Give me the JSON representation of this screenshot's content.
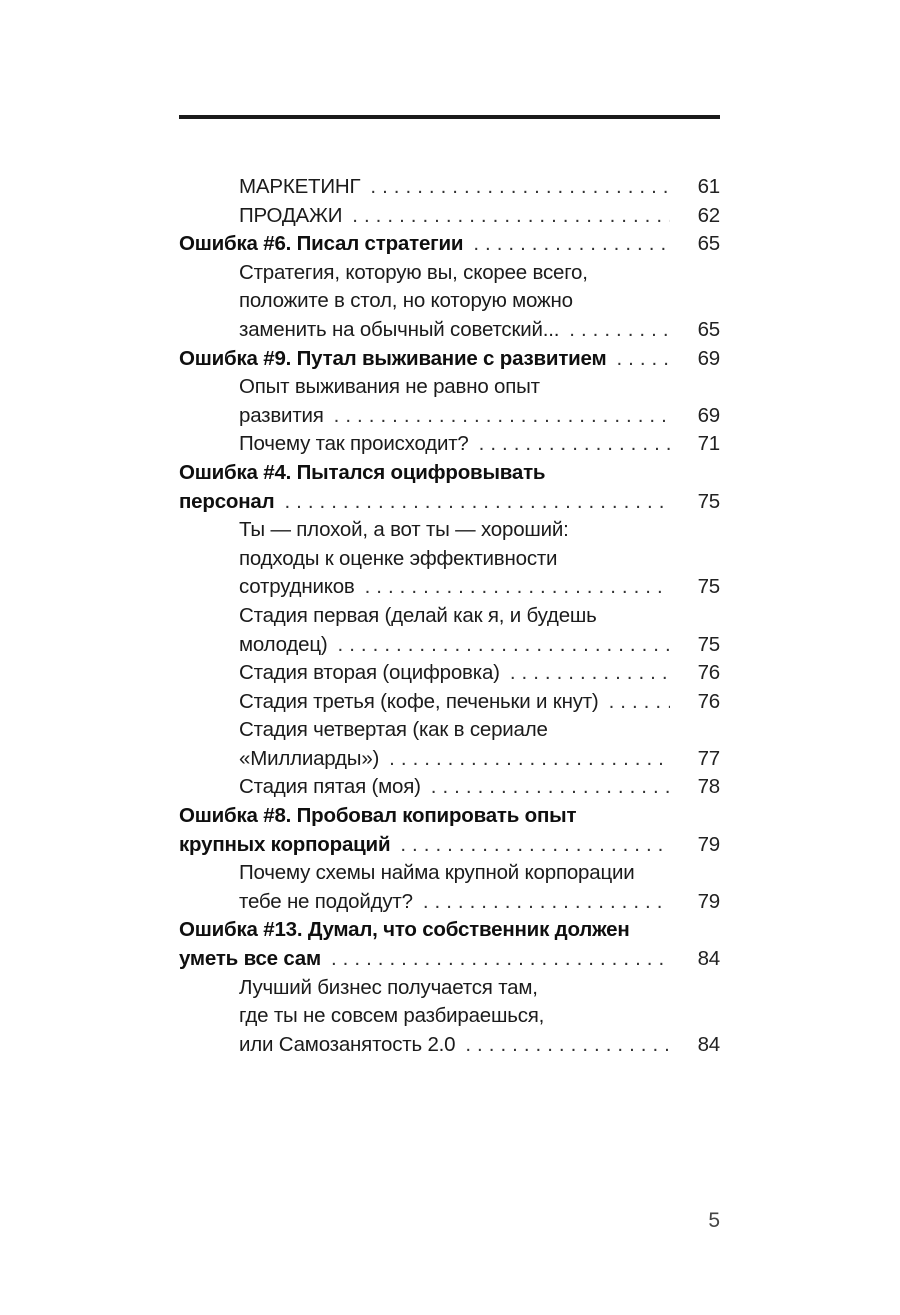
{
  "page": {
    "background": "#ffffff",
    "rule_color": "#1a1a1a",
    "text_color": "#1b1b1b",
    "folio_number": "5",
    "dot_leader_char": "."
  },
  "toc": {
    "entries": [
      {
        "bold": false,
        "indent": true,
        "lines": [
          "МАРКЕТИНГ"
        ],
        "page": "61"
      },
      {
        "bold": false,
        "indent": true,
        "lines": [
          "ПРОДАЖИ"
        ],
        "page": "62"
      },
      {
        "bold": true,
        "indent": false,
        "lines": [
          "Ошибка #6. Писал стратегии"
        ],
        "page": "65"
      },
      {
        "bold": false,
        "indent": true,
        "lines": [
          "Стратегия, которую вы, скорее всего,",
          "положите в стол, но которую можно",
          "заменить на обычный советский..."
        ],
        "page": "65"
      },
      {
        "bold": true,
        "indent": false,
        "lines": [
          "Ошибка #9. Путал выживание с развитием"
        ],
        "page": "69"
      },
      {
        "bold": false,
        "indent": true,
        "lines": [
          "Опыт выживания не равно опыт",
          "развития"
        ],
        "page": "69"
      },
      {
        "bold": false,
        "indent": true,
        "lines": [
          "Почему так происходит?"
        ],
        "page": "71"
      },
      {
        "bold": true,
        "indent": false,
        "lines": [
          "Ошибка #4. Пытался оцифровывать",
          "персонал"
        ],
        "page": "75"
      },
      {
        "bold": false,
        "indent": true,
        "lines": [
          "Ты — плохой, а вот ты — хороший:",
          "подходы к оценке эффективности",
          "сотрудников"
        ],
        "page": "75"
      },
      {
        "bold": false,
        "indent": true,
        "lines": [
          "Стадия первая (делай как я, и будешь",
          "молодец)"
        ],
        "page": "75"
      },
      {
        "bold": false,
        "indent": true,
        "lines": [
          "Стадия вторая (оцифровка)"
        ],
        "page": "76"
      },
      {
        "bold": false,
        "indent": true,
        "lines": [
          "Стадия третья (кофе, печеньки и кнут)"
        ],
        "page": "76"
      },
      {
        "bold": false,
        "indent": true,
        "lines": [
          "Стадия четвертая (как в сериале",
          "«Миллиарды»)"
        ],
        "page": "77"
      },
      {
        "bold": false,
        "indent": true,
        "lines": [
          "Стадия пятая (моя)"
        ],
        "page": "78"
      },
      {
        "bold": true,
        "indent": false,
        "lines": [
          "Ошибка #8. Пробовал копировать опыт",
          "крупных корпораций"
        ],
        "page": "79"
      },
      {
        "bold": false,
        "indent": true,
        "lines": [
          "Почему схемы найма крупной корпорации",
          "тебе не подойдут?"
        ],
        "page": "79"
      },
      {
        "bold": true,
        "indent": false,
        "lines": [
          "Ошибка #13. Думал, что собственник должен",
          "уметь все сам"
        ],
        "page": "84"
      },
      {
        "bold": false,
        "indent": true,
        "lines": [
          "Лучший бизнес получается там,",
          "где ты не совсем разбираешься,",
          "или Самозанятость 2.0"
        ],
        "page": "84"
      }
    ]
  }
}
